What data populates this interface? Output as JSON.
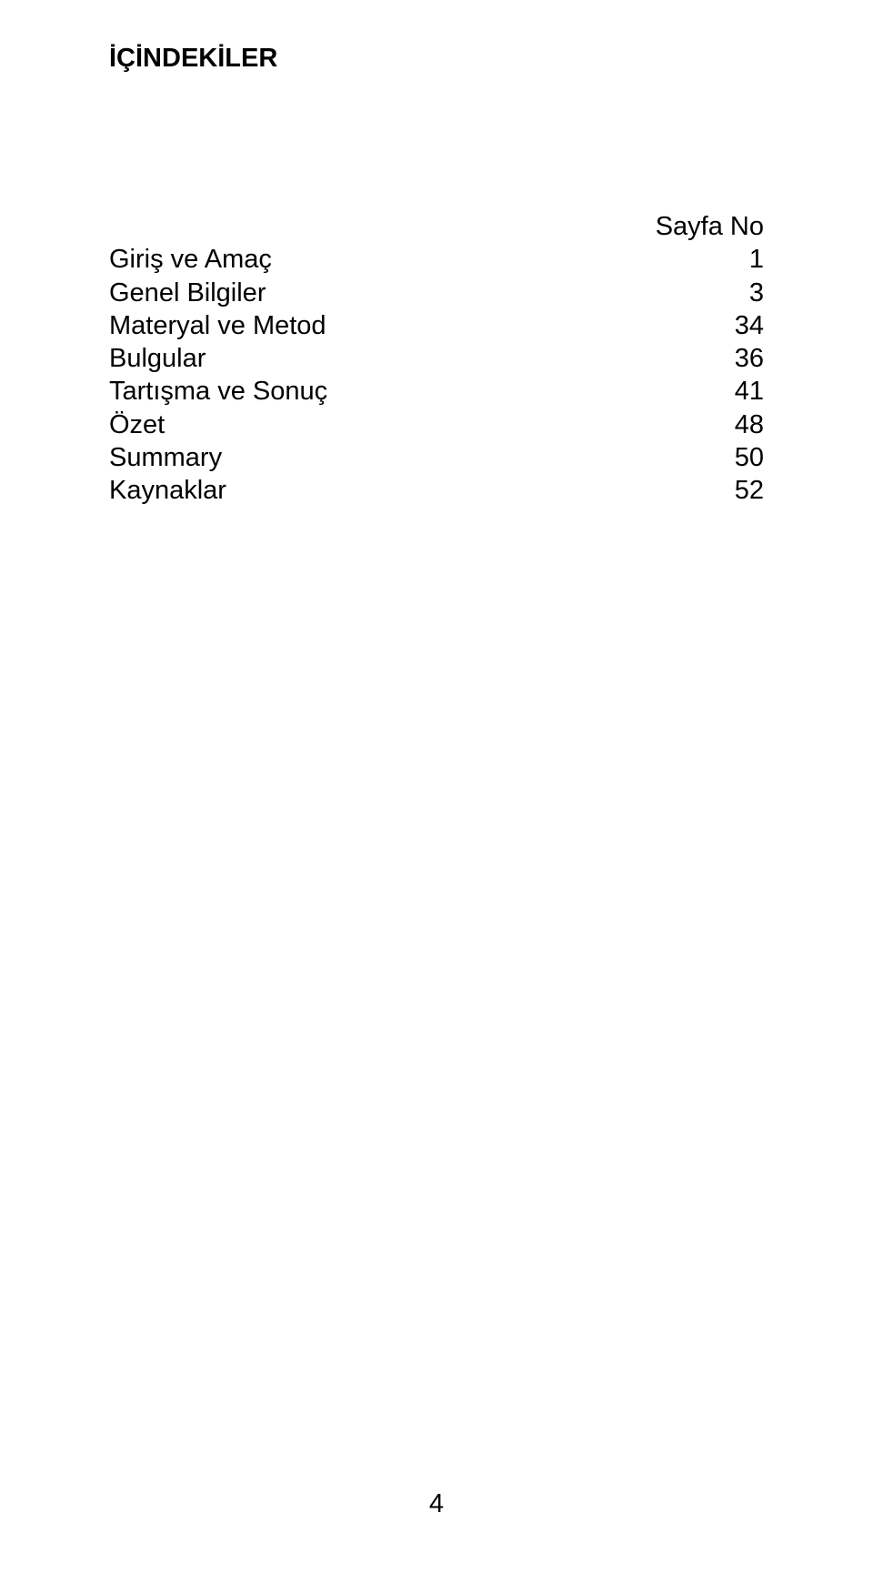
{
  "title": "İÇİNDEKİLER",
  "header": {
    "page_label": "Sayfa No"
  },
  "toc": [
    {
      "label": "Giriş ve Amaç",
      "page": "1"
    },
    {
      "label": "Genel Bilgiler",
      "page": "3"
    },
    {
      "label": "Materyal ve Metod",
      "page": "34"
    },
    {
      "label": "Bulgular",
      "page": "36"
    },
    {
      "label": "Tartışma ve Sonuç",
      "page": "41"
    },
    {
      "label": "Özet",
      "page": "48"
    },
    {
      "label": "Summary",
      "page": "50"
    },
    {
      "label": "Kaynaklar",
      "page": "52"
    }
  ],
  "page_number": "4",
  "colors": {
    "background": "#ffffff",
    "text": "#000000"
  },
  "typography": {
    "title_fontsize": 29,
    "title_weight": "bold",
    "body_fontsize": 29,
    "body_weight": "normal",
    "font_family": "Arial"
  }
}
